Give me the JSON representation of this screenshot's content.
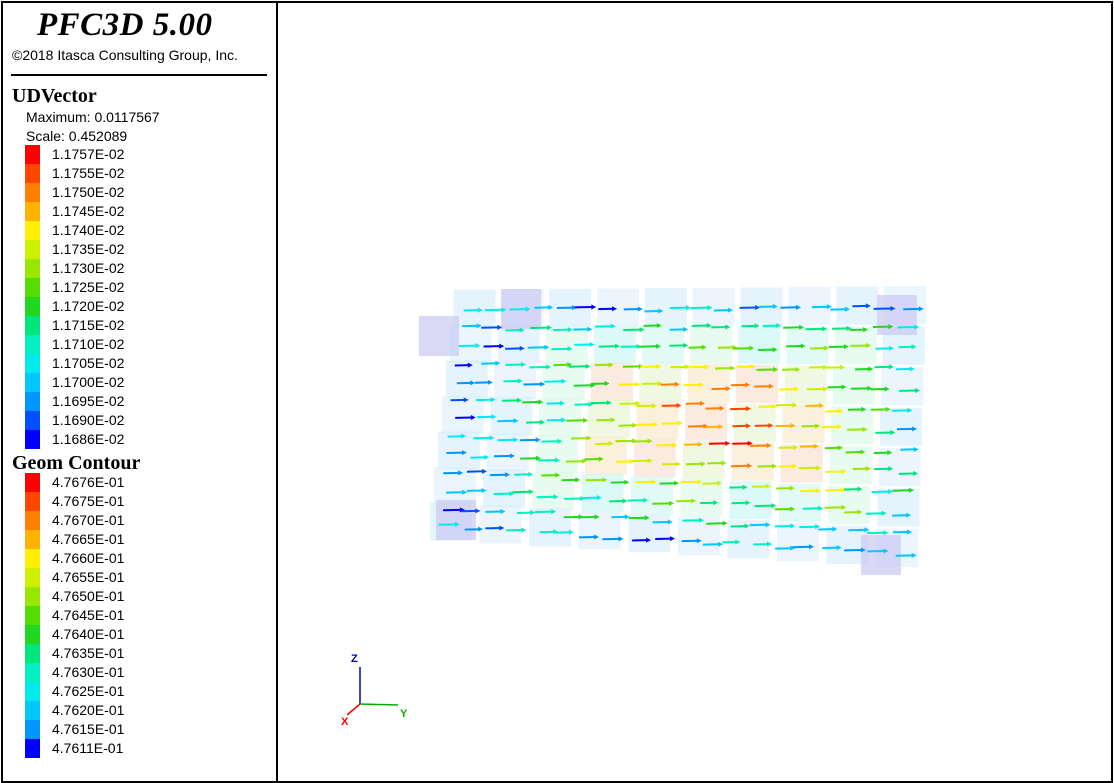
{
  "header": {
    "app_title": "PFC3D 5.00",
    "copyright": "©2018 Itasca Consulting Group, Inc."
  },
  "udvector": {
    "title": "UDVector",
    "maximum_text": "Maximum: 0.0117567",
    "scale_text": "Scale: 0.452089",
    "scale": [
      {
        "label": "1.1757E-02",
        "color": "#ff0000"
      },
      {
        "label": "1.1755E-02",
        "color": "#ff4500"
      },
      {
        "label": "1.1750E-02",
        "color": "#ff7f00"
      },
      {
        "label": "1.1745E-02",
        "color": "#ffb300"
      },
      {
        "label": "1.1740E-02",
        "color": "#ffef00"
      },
      {
        "label": "1.1735E-02",
        "color": "#ccf000"
      },
      {
        "label": "1.1730E-02",
        "color": "#99e600"
      },
      {
        "label": "1.1725E-02",
        "color": "#55dd00"
      },
      {
        "label": "1.1720E-02",
        "color": "#1fd81f"
      },
      {
        "label": "1.1715E-02",
        "color": "#00e67a"
      },
      {
        "label": "1.1710E-02",
        "color": "#00f0c0"
      },
      {
        "label": "1.1705E-02",
        "color": "#00ecec"
      },
      {
        "label": "1.1700E-02",
        "color": "#00c8ff"
      },
      {
        "label": "1.1695E-02",
        "color": "#0096ff"
      },
      {
        "label": "1.1690E-02",
        "color": "#0050ff"
      },
      {
        "label": "1.1686E-02",
        "color": "#0000ff"
      }
    ]
  },
  "geom_contour": {
    "title": "Geom Contour",
    "scale": [
      {
        "label": "4.7676E-01",
        "color": "#ff0000"
      },
      {
        "label": "4.7675E-01",
        "color": "#ff4500"
      },
      {
        "label": "4.7670E-01",
        "color": "#ff7f00"
      },
      {
        "label": "4.7665E-01",
        "color": "#ffb300"
      },
      {
        "label": "4.7660E-01",
        "color": "#ffef00"
      },
      {
        "label": "4.7655E-01",
        "color": "#ccf000"
      },
      {
        "label": "4.7650E-01",
        "color": "#99e600"
      },
      {
        "label": "4.7645E-01",
        "color": "#55dd00"
      },
      {
        "label": "4.7640E-01",
        "color": "#1fd81f"
      },
      {
        "label": "4.7635E-01",
        "color": "#00e67a"
      },
      {
        "label": "4.7630E-01",
        "color": "#00f0c0"
      },
      {
        "label": "4.7625E-01",
        "color": "#00ecec"
      },
      {
        "label": "4.7620E-01",
        "color": "#00c8ff"
      },
      {
        "label": "4.7615E-01",
        "color": "#0096ff"
      },
      {
        "label": "4.7611E-01",
        "color": "#0000ff"
      }
    ]
  },
  "axes_triad": {
    "z_label": "Z",
    "x_label": "X",
    "y_label": "Y",
    "z_color": "#0000cc",
    "x_color": "#ff0000",
    "y_color": "#00b000"
  }
}
